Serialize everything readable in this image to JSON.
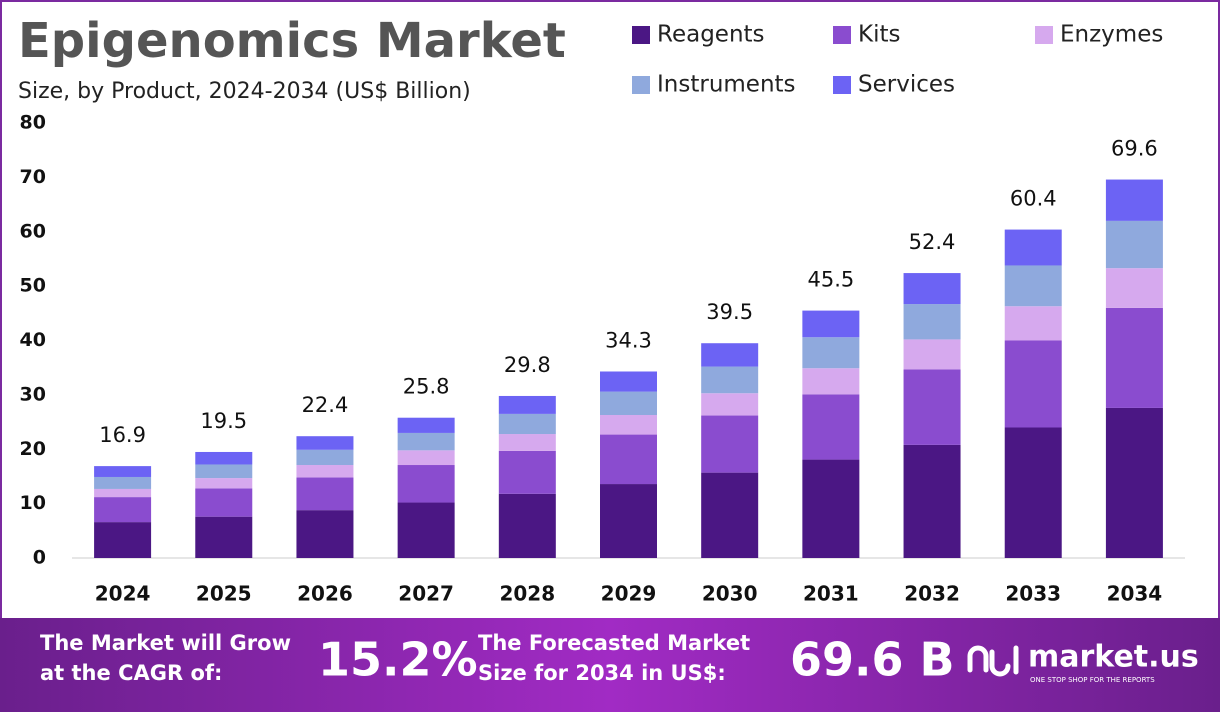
{
  "chart_data": {
    "type": "stacked-bar",
    "title": "Epigenomics Market",
    "subtitle": "Size, by Product, 2024-2034 (US$ Billion)",
    "categories": [
      "2024",
      "2025",
      "2026",
      "2027",
      "2028",
      "2029",
      "2030",
      "2031",
      "2032",
      "2033",
      "2034"
    ],
    "series": [
      {
        "name": "Reagents",
        "color": "#4b1784",
        "values": [
          6.6,
          7.6,
          8.8,
          10.2,
          11.8,
          13.6,
          15.7,
          18.1,
          20.8,
          24.0,
          27.6
        ]
      },
      {
        "name": "Kits",
        "color": "#8a4ccf",
        "values": [
          4.6,
          5.2,
          6.0,
          6.9,
          7.9,
          9.1,
          10.5,
          12.0,
          13.9,
          16.0,
          18.4
        ]
      },
      {
        "name": "Enzymes",
        "color": "#d6a9ee",
        "values": [
          1.5,
          1.9,
          2.3,
          2.7,
          3.1,
          3.6,
          4.1,
          4.8,
          5.5,
          6.3,
          7.3
        ]
      },
      {
        "name": "Instruments",
        "color": "#8fa9dd",
        "values": [
          2.2,
          2.5,
          2.8,
          3.2,
          3.7,
          4.3,
          4.9,
          5.7,
          6.5,
          7.5,
          8.7
        ]
      },
      {
        "name": "Services",
        "color": "#6c63f4",
        "values": [
          2.0,
          2.3,
          2.5,
          2.8,
          3.3,
          3.7,
          4.3,
          4.9,
          5.7,
          6.6,
          7.6
        ]
      }
    ],
    "totals": [
      16.9,
      19.5,
      22.4,
      25.8,
      29.8,
      34.3,
      39.5,
      45.5,
      52.4,
      60.4,
      69.6
    ],
    "ylim": [
      0,
      80
    ],
    "yticks": [
      0,
      10,
      20,
      30,
      40,
      50,
      60,
      70,
      80
    ],
    "grid": false,
    "legend": "top-right"
  },
  "footer": {
    "cagr_text": "The Market will Grow at the CAGR of:",
    "cagr_value": "15.2%",
    "forecast_text": "The Forecasted Market Size for 2034 in US$:",
    "forecast_value": "69.6 B",
    "brand": "market.us",
    "tagline": "ONE STOP SHOP FOR THE REPORTS"
  }
}
